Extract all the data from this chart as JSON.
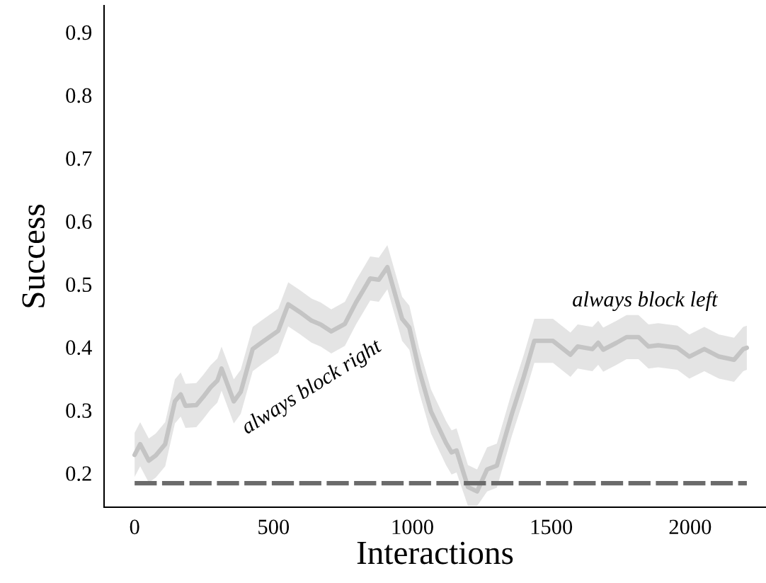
{
  "chart_data": {
    "type": "line",
    "xlabel": "Interactions",
    "ylabel": "Success",
    "xlim": [
      -110,
      2273
    ],
    "ylim": [
      0.146,
      0.942
    ],
    "xticks": [
      0,
      500,
      1000,
      1500,
      2000
    ],
    "yticks": [
      0.2,
      0.3,
      0.4,
      0.5,
      0.6,
      0.7,
      0.8,
      0.9
    ],
    "grid": false,
    "series": [
      {
        "color": "#c4c4c4",
        "line_style": "solid",
        "x": [
          0,
          20,
          51,
          76,
          110,
          145,
          166,
          183,
          222,
          247,
          273,
          298,
          313,
          357,
          382,
          425,
          459,
          517,
          553,
          594,
          637,
          670,
          708,
          757,
          797,
          848,
          879,
          910,
          963,
          989,
          1024,
          1067,
          1121,
          1141,
          1159,
          1200,
          1233,
          1269,
          1304,
          1358,
          1401,
          1439,
          1506,
          1569,
          1595,
          1648,
          1669,
          1687,
          1735,
          1771,
          1814,
          1850,
          1885,
          1954,
          1997,
          2051,
          2104,
          2158,
          2191,
          2204
        ],
        "values": [
          0.229,
          0.246,
          0.22,
          0.228,
          0.246,
          0.314,
          0.325,
          0.307,
          0.308,
          0.321,
          0.336,
          0.347,
          0.366,
          0.314,
          0.329,
          0.397,
          0.408,
          0.426,
          0.468,
          0.456,
          0.442,
          0.436,
          0.425,
          0.437,
          0.471,
          0.509,
          0.507,
          0.527,
          0.445,
          0.431,
          0.364,
          0.298,
          0.248,
          0.233,
          0.236,
          0.178,
          0.171,
          0.206,
          0.212,
          0.294,
          0.353,
          0.41,
          0.41,
          0.388,
          0.401,
          0.397,
          0.407,
          0.396,
          0.407,
          0.416,
          0.416,
          0.401,
          0.403,
          0.399,
          0.385,
          0.397,
          0.385,
          0.38,
          0.397,
          0.399
        ],
        "lower": [
          0.194,
          0.211,
          0.185,
          0.193,
          0.211,
          0.279,
          0.29,
          0.272,
          0.273,
          0.286,
          0.301,
          0.312,
          0.331,
          0.279,
          0.294,
          0.362,
          0.373,
          0.391,
          0.433,
          0.421,
          0.407,
          0.401,
          0.39,
          0.402,
          0.436,
          0.474,
          0.472,
          0.492,
          0.41,
          0.396,
          0.329,
          0.263,
          0.213,
          0.198,
          0.201,
          0.148,
          0.148,
          0.171,
          0.177,
          0.259,
          0.318,
          0.375,
          0.375,
          0.353,
          0.366,
          0.362,
          0.372,
          0.361,
          0.372,
          0.381,
          0.381,
          0.366,
          0.368,
          0.364,
          0.35,
          0.362,
          0.35,
          0.345,
          0.362,
          0.364
        ],
        "upper": [
          0.264,
          0.281,
          0.255,
          0.263,
          0.281,
          0.349,
          0.36,
          0.342,
          0.343,
          0.356,
          0.371,
          0.382,
          0.401,
          0.349,
          0.364,
          0.432,
          0.443,
          0.461,
          0.503,
          0.491,
          0.477,
          0.471,
          0.46,
          0.472,
          0.506,
          0.544,
          0.542,
          0.562,
          0.48,
          0.466,
          0.399,
          0.333,
          0.283,
          0.268,
          0.271,
          0.213,
          0.206,
          0.241,
          0.247,
          0.329,
          0.388,
          0.445,
          0.445,
          0.423,
          0.436,
          0.432,
          0.442,
          0.431,
          0.442,
          0.451,
          0.451,
          0.436,
          0.438,
          0.434,
          0.42,
          0.432,
          0.42,
          0.415,
          0.432,
          0.434
        ]
      },
      {
        "color": "#6b6b6b",
        "line_style": "dashed",
        "x": [
          0,
          2204
        ],
        "values": [
          0.184,
          0.184
        ]
      }
    ],
    "annotations": [
      "always block right",
      "always block left"
    ]
  }
}
